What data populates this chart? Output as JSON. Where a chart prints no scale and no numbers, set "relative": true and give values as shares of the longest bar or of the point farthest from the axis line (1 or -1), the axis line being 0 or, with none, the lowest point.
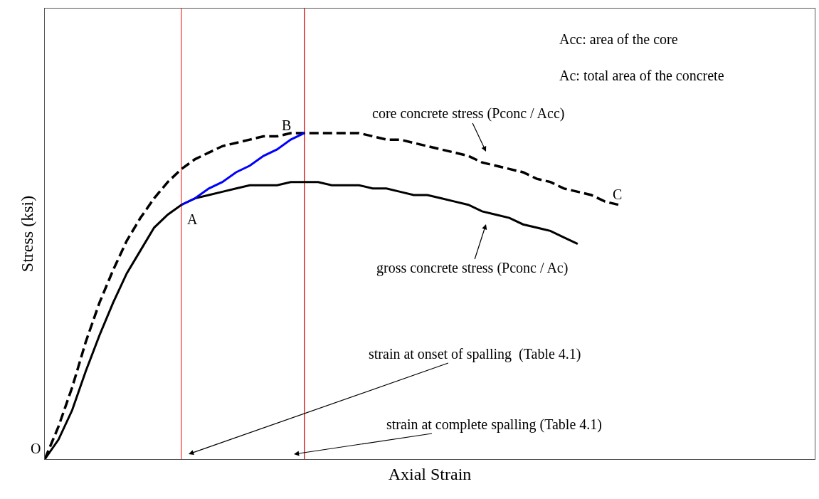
{
  "chart_data": {
    "type": "line",
    "relative": true,
    "xlabel": "Axial Strain",
    "ylabel": "Stress (ksi)",
    "categories": [
      null,
      null,
      null,
      null,
      null,
      null,
      null,
      null,
      null,
      null,
      null,
      null,
      null,
      null,
      null,
      null,
      null,
      null,
      null,
      null,
      null,
      null,
      null,
      null,
      null,
      null,
      null,
      null,
      null,
      null,
      null,
      null,
      null,
      null,
      null,
      null,
      null,
      null,
      null,
      null,
      null,
      null,
      null,
      null,
      null,
      null,
      null,
      null,
      null,
      null,
      null,
      null,
      null,
      null,
      null,
      null,
      null
    ],
    "series": [
      {
        "name": "core concrete stress (Pconc / Acc)",
        "color": "#000000",
        "line_style": "dashed",
        "values": [
          0,
          0.1,
          0.22,
          0.36,
          0.48,
          0.58,
          0.67,
          0.74,
          0.8,
          0.85,
          0.89,
          0.92,
          0.94,
          0.96,
          0.97,
          0.98,
          0.99,
          0.99,
          1.0,
          1.0,
          1.0,
          1.0,
          1.0,
          1.0,
          0.99,
          0.98,
          0.98,
          0.97,
          0.96,
          0.95,
          0.94,
          0.93,
          0.91,
          0.9,
          0.89,
          0.88,
          0.86,
          0.85,
          0.83,
          0.82,
          0.81,
          0.79,
          0.78,
          null,
          null,
          null,
          null,
          null,
          null,
          null,
          null,
          null,
          null,
          null,
          null,
          null,
          null
        ]
      },
      {
        "name": "gross concrete stress (Pconc / Ac)",
        "color": "#000000",
        "line_style": "solid",
        "values": [
          0,
          0.06,
          0.15,
          0.27,
          0.38,
          0.48,
          0.57,
          0.64,
          0.71,
          0.75,
          0.78,
          0.8,
          0.81,
          0.82,
          0.83,
          0.84,
          0.84,
          0.84,
          0.85,
          0.85,
          0.85,
          0.84,
          0.84,
          0.84,
          0.83,
          0.83,
          0.82,
          0.81,
          0.81,
          0.8,
          0.79,
          0.78,
          0.76,
          0.75,
          0.74,
          0.72,
          0.71,
          0.7,
          0.68,
          0.66,
          null,
          null,
          null,
          null,
          null,
          null,
          null,
          null,
          null,
          null,
          null,
          null,
          null,
          null,
          null,
          null,
          null
        ]
      },
      {
        "color": "#0000ff",
        "line_style": "solid",
        "values": [
          null,
          null,
          null,
          null,
          null,
          null,
          null,
          null,
          null,
          null,
          0.78,
          0.8,
          0.83,
          0.85,
          0.88,
          0.9,
          0.93,
          0.95,
          0.98,
          1.0,
          null,
          null,
          null,
          null,
          null,
          null,
          null,
          null,
          null,
          null,
          null,
          null,
          null,
          null,
          null,
          null,
          null,
          null,
          null,
          null,
          null,
          null,
          null,
          null,
          null,
          null,
          null,
          null,
          null,
          null,
          null,
          null,
          null,
          null,
          null,
          null,
          null
        ]
      }
    ],
    "annotations": [
      "Acc: area of the core",
      "Ac: total area of the concrete",
      "A",
      "B",
      "C",
      "O",
      "strain at onset of spalling  (Table 4.1)",
      "strain at complete spalling (Table 4.1)"
    ],
    "legend": false,
    "grid": false,
    "marker": "none"
  }
}
